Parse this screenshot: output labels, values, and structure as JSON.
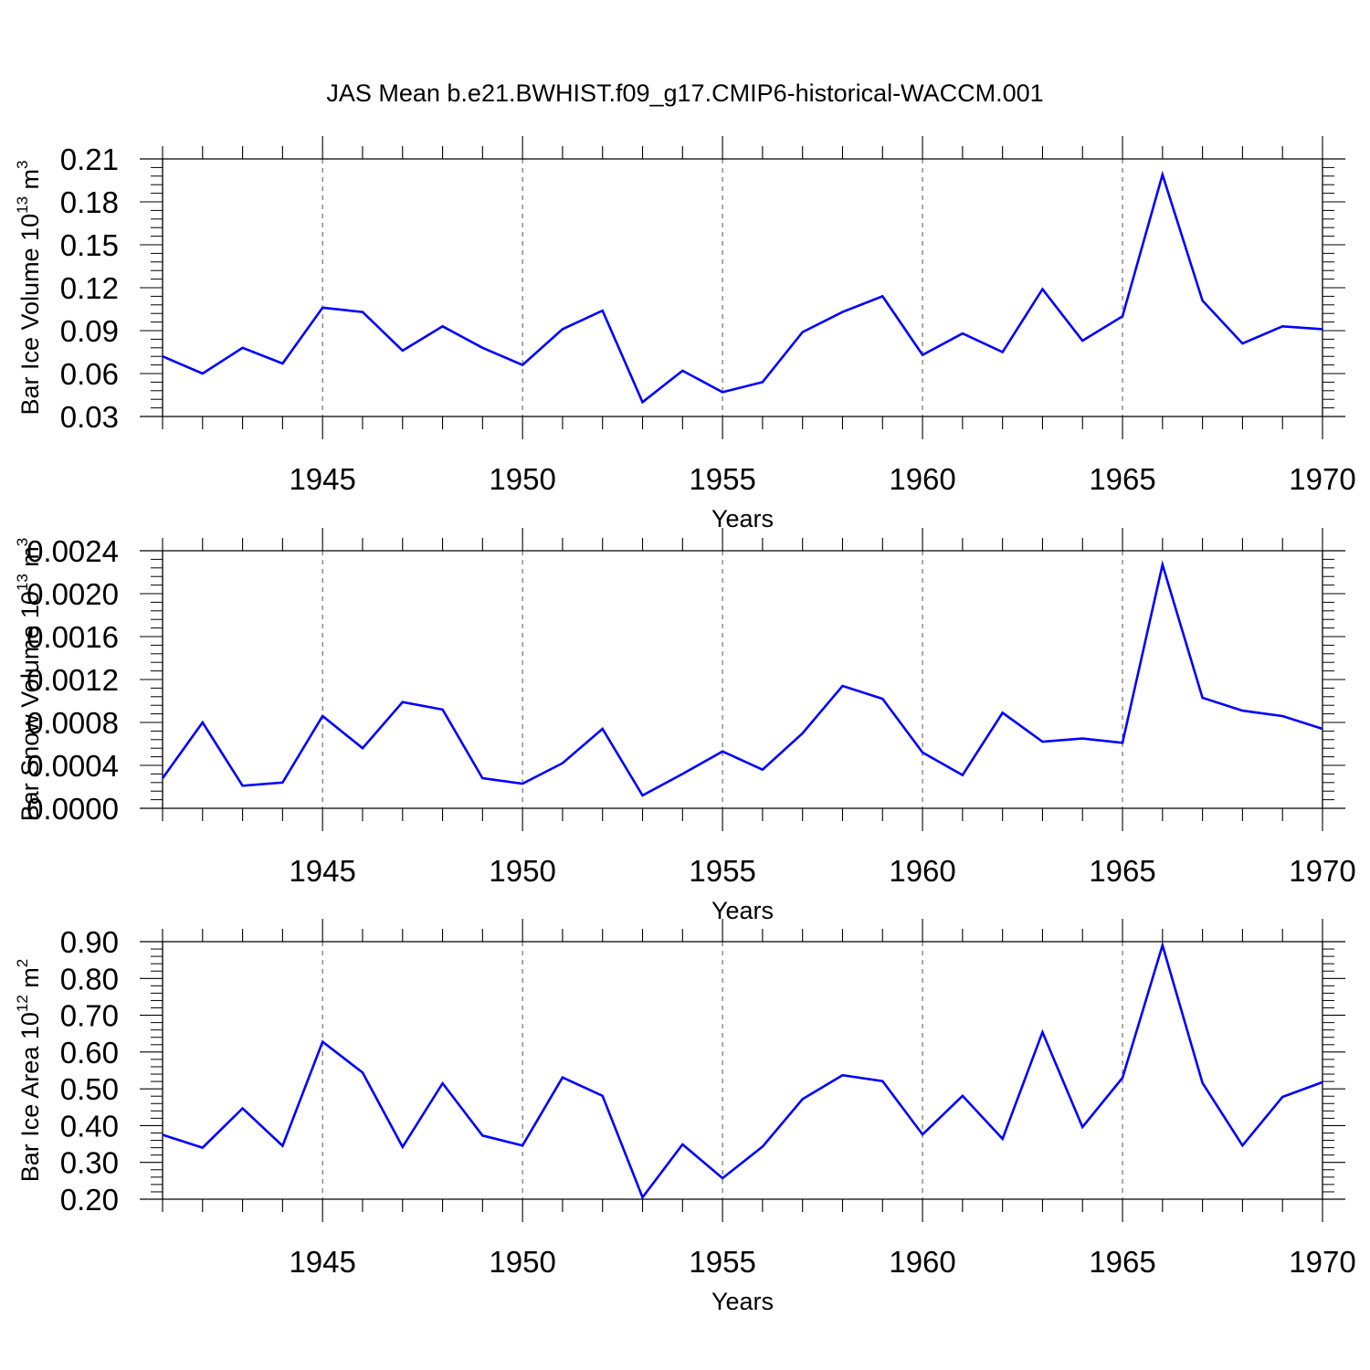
{
  "title": "JAS Mean b.e21.BWHIST.f09_g17.CMIP6-historical-WACCM.001",
  "colors": {
    "line": "#0000ff",
    "axis": "#000000",
    "grid": "#555555",
    "background": "#ffffff"
  },
  "chart_data": [
    {
      "type": "line",
      "ylabel": {
        "base": "Bar Ice Volume 10",
        "exp1": "13",
        "unit": " m",
        "exp2": "3"
      },
      "xlabel": "Years",
      "xlim": [
        1941,
        1970
      ],
      "ylim": [
        0.03,
        0.21
      ],
      "x_ticks": [
        1945,
        1950,
        1955,
        1960,
        1965,
        1970
      ],
      "x_tick_labels": [
        "1945",
        "1950",
        "1955",
        "1960",
        "1965",
        "1970"
      ],
      "y_ticks": [
        0.03,
        0.06,
        0.09,
        0.12,
        0.15,
        0.18,
        0.21
      ],
      "y_tick_labels": [
        "0.03",
        "0.06",
        "0.09",
        "0.12",
        "0.15",
        "0.18",
        "0.21"
      ],
      "grid": "vertical dashed at major x ticks",
      "x": [
        1941,
        1942,
        1943,
        1944,
        1945,
        1946,
        1947,
        1948,
        1949,
        1950,
        1951,
        1952,
        1953,
        1954,
        1955,
        1956,
        1957,
        1958,
        1959,
        1960,
        1961,
        1962,
        1963,
        1964,
        1965,
        1966,
        1967,
        1968,
        1969,
        1970
      ],
      "values": [
        0.072,
        0.06,
        0.078,
        0.067,
        0.106,
        0.103,
        0.076,
        0.093,
        0.078,
        0.066,
        0.091,
        0.104,
        0.04,
        0.062,
        0.047,
        0.054,
        0.089,
        0.103,
        0.114,
        0.073,
        0.088,
        0.075,
        0.119,
        0.083,
        0.1,
        0.199,
        0.111,
        0.081,
        0.093,
        0.091
      ]
    },
    {
      "type": "line",
      "ylabel": {
        "base": "Bar Snow Volume 10",
        "exp1": "13",
        "unit": " m",
        "exp2": "3"
      },
      "xlabel": "Years",
      "xlim": [
        1941,
        1970
      ],
      "ylim": [
        0.0,
        0.0024
      ],
      "x_ticks": [
        1945,
        1950,
        1955,
        1960,
        1965,
        1970
      ],
      "x_tick_labels": [
        "1945",
        "1950",
        "1955",
        "1960",
        "1965",
        "1970"
      ],
      "y_ticks": [
        0.0,
        0.0004,
        0.0008,
        0.0012,
        0.0016,
        0.002,
        0.0024
      ],
      "y_tick_labels": [
        "0.0000",
        "0.0004",
        "0.0008",
        "0.0012",
        "0.0016",
        "0.0020",
        "0.0024"
      ],
      "grid": "vertical dashed at major x ticks",
      "x": [
        1941,
        1942,
        1943,
        1944,
        1945,
        1946,
        1947,
        1948,
        1949,
        1950,
        1951,
        1952,
        1953,
        1954,
        1955,
        1956,
        1957,
        1958,
        1959,
        1960,
        1961,
        1962,
        1963,
        1964,
        1965,
        1966,
        1967,
        1968,
        1969,
        1970
      ],
      "values": [
        0.00028,
        0.0008,
        0.00021,
        0.00024,
        0.00086,
        0.00056,
        0.00099,
        0.00092,
        0.00028,
        0.00023,
        0.00042,
        0.00074,
        0.00012,
        0.00032,
        0.00053,
        0.00036,
        0.0007,
        0.00114,
        0.00102,
        0.00052,
        0.00031,
        0.00089,
        0.00062,
        0.00065,
        0.00061,
        0.00227,
        0.00103,
        0.00091,
        0.00086,
        0.00074
      ]
    },
    {
      "type": "line",
      "ylabel": {
        "base": "Bar Ice Area 10",
        "exp1": "12",
        "unit": " m",
        "exp2": "2"
      },
      "xlabel": "Years",
      "xlim": [
        1941,
        1970
      ],
      "ylim": [
        0.2,
        0.9
      ],
      "x_ticks": [
        1945,
        1950,
        1955,
        1960,
        1965,
        1970
      ],
      "x_tick_labels": [
        "1945",
        "1950",
        "1955",
        "1960",
        "1965",
        "1970"
      ],
      "y_ticks": [
        0.2,
        0.3,
        0.4,
        0.5,
        0.6,
        0.7,
        0.8,
        0.9
      ],
      "y_tick_labels": [
        "0.20",
        "0.30",
        "0.40",
        "0.50",
        "0.60",
        "0.70",
        "0.80",
        "0.90"
      ],
      "grid": "vertical dashed at major x ticks",
      "x": [
        1941,
        1942,
        1943,
        1944,
        1945,
        1946,
        1947,
        1948,
        1949,
        1950,
        1951,
        1952,
        1953,
        1954,
        1955,
        1956,
        1957,
        1958,
        1959,
        1960,
        1961,
        1962,
        1963,
        1964,
        1965,
        1966,
        1967,
        1968,
        1969,
        1970
      ],
      "values": [
        0.375,
        0.34,
        0.447,
        0.345,
        0.628,
        0.544,
        0.342,
        0.515,
        0.373,
        0.346,
        0.531,
        0.481,
        0.205,
        0.349,
        0.257,
        0.343,
        0.472,
        0.537,
        0.521,
        0.376,
        0.481,
        0.364,
        0.654,
        0.396,
        0.53,
        0.89,
        0.516,
        0.346,
        0.478,
        0.518
      ]
    }
  ]
}
